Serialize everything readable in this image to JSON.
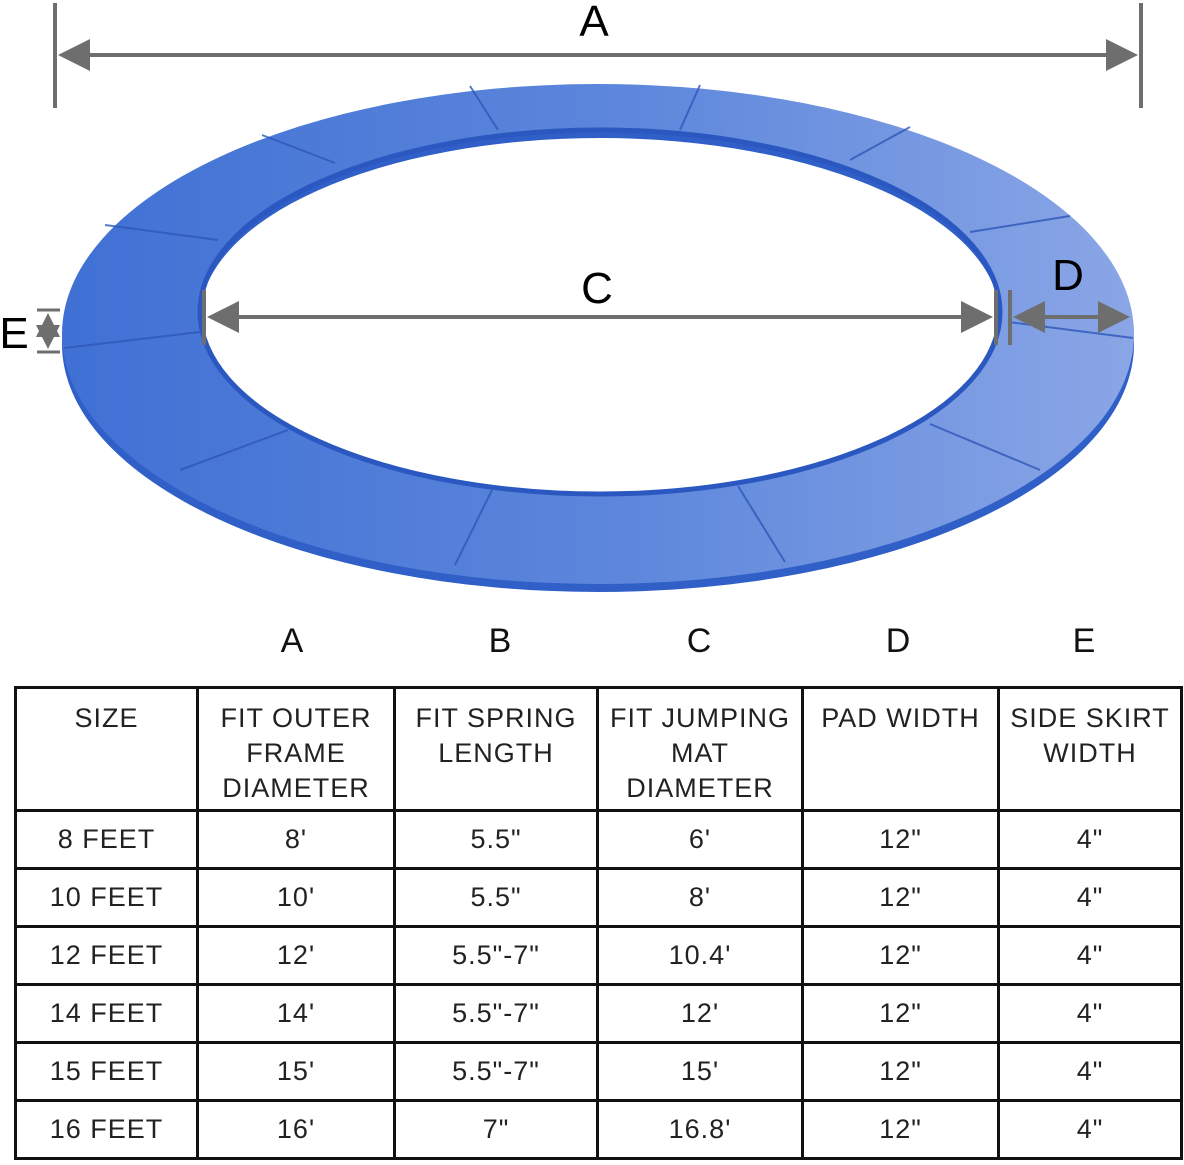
{
  "diagram": {
    "labels": {
      "A": "A",
      "C": "C",
      "D": "D",
      "E": "E"
    },
    "colors": {
      "pad": "#4a7ad8",
      "pad_light": "#7f9fe3",
      "skirt": "#2f5fc7",
      "dimension_line": "#6e6e6e"
    }
  },
  "column_letters": [
    "A",
    "B",
    "C",
    "D",
    "E"
  ],
  "table": {
    "headers": [
      "SIZE",
      "FIT OUTER FRAME DIAMETER",
      "FIT SPRING LENGTH",
      "FIT JUMPING MAT DIAMETER",
      "PAD WIDTH",
      "SIDE SKIRT WIDTH"
    ],
    "rows": [
      [
        "8 FEET",
        "8'",
        "5.5\"",
        "6'",
        "12\"",
        "4\""
      ],
      [
        "10 FEET",
        "10'",
        "5.5\"",
        "8'",
        "12\"",
        "4\""
      ],
      [
        "12 FEET",
        "12'",
        "5.5\"-7\"",
        "10.4'",
        "12\"",
        "4\""
      ],
      [
        "14 FEET",
        "14'",
        "5.5\"-7\"",
        "12'",
        "12\"",
        "4\""
      ],
      [
        "15 FEET",
        "15'",
        "5.5\"-7\"",
        "15'",
        "12\"",
        "4\""
      ],
      [
        "16 FEET",
        "16'",
        "7\"",
        "16.8'",
        "12\"",
        "4\""
      ]
    ]
  }
}
